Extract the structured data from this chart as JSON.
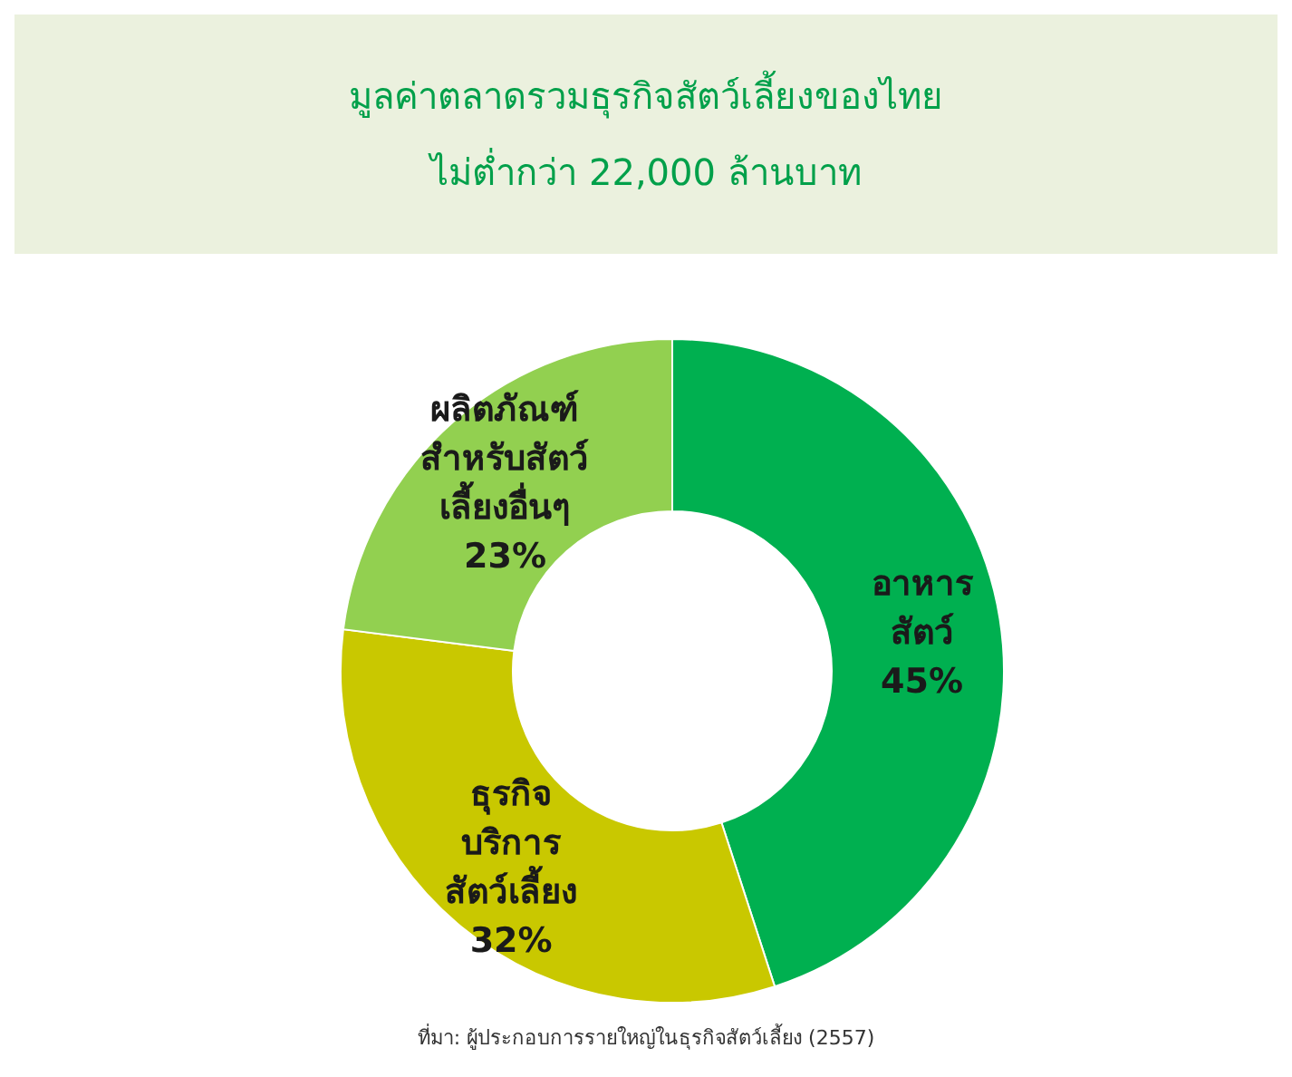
{
  "chart_data": {
    "type": "donut",
    "title": "มูลค่าตลาดรวมธุรกิจสัตว์เลี้ยงของไทย",
    "subtitle": "ไม่ต่ำกว่า 22,000 ล้านบาท",
    "categories": [
      "อาหาร\nสัตว์",
      "ธุรกิจ\nบริการ\nสัตว์เลี้ยง",
      "ผลิตภัณฑ์\nสำหรับสัตว์\nเลี้ยงอื่นๆ"
    ],
    "values": [
      45,
      32,
      23
    ],
    "value_labels": [
      "45%",
      "32%",
      "23%"
    ],
    "colors": [
      "#00b050",
      "#c9c800",
      "#92d050"
    ],
    "annotations": [
      "ที่มา: ผู้ประกอบการรายใหญ่ในธุรกิจสัตว์เลี้ยง (2557)"
    ]
  }
}
